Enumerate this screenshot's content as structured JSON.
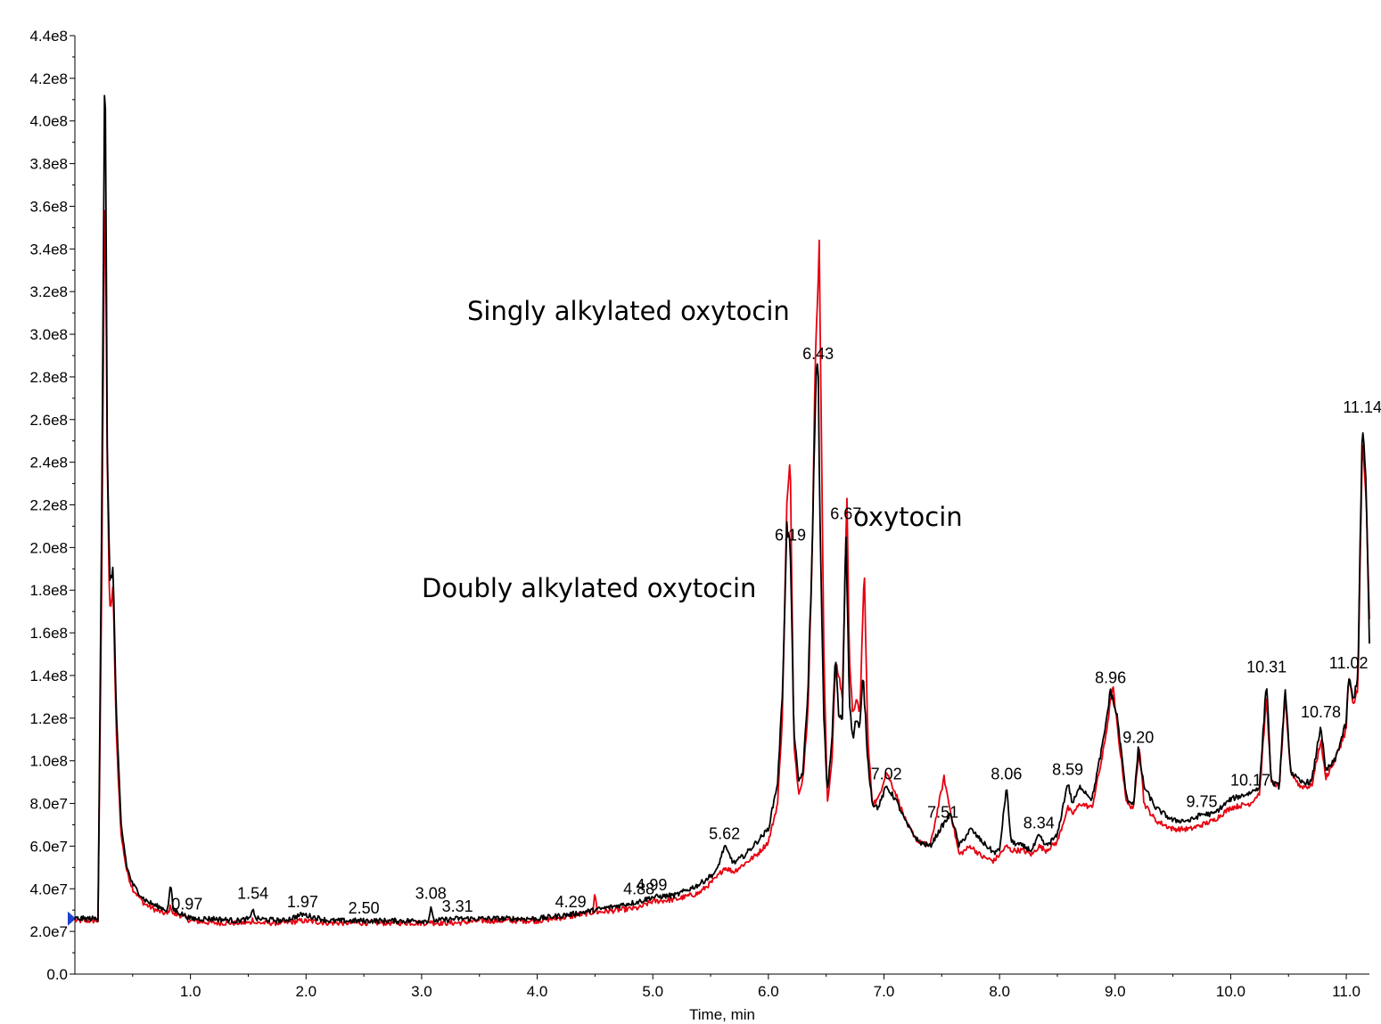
{
  "chart_data": {
    "type": "line",
    "title": "",
    "xlabel": "Time, min",
    "ylabel": "",
    "xlim": [
      0,
      11.2
    ],
    "ylim": [
      0,
      440000000
    ],
    "grid": false,
    "x_ticks": [
      1.0,
      2.0,
      3.0,
      4.0,
      5.0,
      6.0,
      7.0,
      8.0,
      9.0,
      10.0,
      11.0
    ],
    "x_tick_labels": [
      "1.0",
      "2.0",
      "3.0",
      "4.0",
      "5.0",
      "6.0",
      "7.0",
      "8.0",
      "9.0",
      "10.0",
      "11.0"
    ],
    "y_ticks": [
      0,
      20000000,
      40000000,
      60000000,
      80000000,
      100000000,
      120000000,
      140000000,
      160000000,
      180000000,
      200000000,
      220000000,
      240000000,
      260000000,
      280000000,
      300000000,
      320000000,
      340000000,
      360000000,
      380000000,
      400000000,
      420000000,
      440000000
    ],
    "y_tick_labels": [
      "0.0",
      "2.0e7",
      "4.0e7",
      "6.0e7",
      "8.0e7",
      "1.0e8",
      "1.2e8",
      "1.4e8",
      "1.6e8",
      "1.8e8",
      "2.0e8",
      "2.2e8",
      "2.4e8",
      "2.6e8",
      "2.8e8",
      "3.0e8",
      "3.2e8",
      "3.4e8",
      "3.6e8",
      "3.8e8",
      "4.0e8",
      "4.2e8",
      "4.4e8"
    ],
    "series": [
      {
        "color": "#000000",
        "x": [
          0.0,
          0.1,
          0.2,
          0.23,
          0.26,
          0.28,
          0.3,
          0.33,
          0.36,
          0.4,
          0.45,
          0.5,
          0.6,
          0.7,
          0.8,
          0.83,
          0.85,
          0.9,
          1.0,
          1.2,
          1.4,
          1.52,
          1.54,
          1.56,
          1.8,
          1.97,
          2.2,
          2.5,
          2.8,
          3.06,
          3.08,
          3.1,
          3.31,
          3.5,
          4.0,
          4.29,
          4.5,
          4.88,
          4.99,
          5.2,
          5.4,
          5.55,
          5.62,
          5.7,
          5.8,
          5.9,
          6.0,
          6.08,
          6.12,
          6.16,
          6.19,
          6.22,
          6.26,
          6.3,
          6.34,
          6.38,
          6.41,
          6.43,
          6.45,
          6.48,
          6.51,
          6.55,
          6.58,
          6.61,
          6.64,
          6.67,
          6.7,
          6.73,
          6.76,
          6.79,
          6.82,
          6.86,
          6.9,
          6.95,
          7.02,
          7.1,
          7.2,
          7.3,
          7.4,
          7.51,
          7.58,
          7.65,
          7.75,
          7.85,
          7.95,
          8.0,
          8.06,
          8.1,
          8.2,
          8.28,
          8.34,
          8.4,
          8.5,
          8.59,
          8.63,
          8.7,
          8.8,
          8.9,
          8.96,
          9.02,
          9.1,
          9.16,
          9.2,
          9.25,
          9.35,
          9.5,
          9.65,
          9.75,
          9.85,
          10.0,
          10.17,
          10.25,
          10.31,
          10.35,
          10.42,
          10.47,
          10.52,
          10.6,
          10.7,
          10.78,
          10.82,
          10.9,
          11.0,
          11.02,
          11.06,
          11.1,
          11.14,
          11.17,
          11.2
        ],
        "values": [
          26000000,
          26000000,
          26000000,
          200000000,
          440000000,
          250000000,
          185000000,
          190000000,
          120000000,
          70000000,
          50000000,
          42000000,
          35000000,
          32000000,
          30000000,
          42000000,
          30000000,
          29000000,
          26000000,
          26000000,
          25000000,
          26000000,
          32000000,
          26000000,
          25000000,
          28000000,
          25000000,
          25000000,
          25000000,
          25000000,
          32000000,
          25000000,
          26000000,
          26000000,
          26000000,
          28000000,
          30000000,
          34000000,
          36000000,
          37000000,
          42000000,
          48000000,
          60000000,
          52000000,
          56000000,
          62000000,
          68000000,
          90000000,
          130000000,
          210000000,
          200000000,
          115000000,
          90000000,
          95000000,
          130000000,
          200000000,
          280000000,
          285000000,
          200000000,
          120000000,
          85000000,
          110000000,
          150000000,
          120000000,
          120000000,
          210000000,
          130000000,
          110000000,
          120000000,
          115000000,
          140000000,
          100000000,
          80000000,
          78000000,
          88000000,
          82000000,
          70000000,
          62000000,
          60000000,
          70000000,
          75000000,
          60000000,
          68000000,
          62000000,
          57000000,
          58000000,
          88000000,
          62000000,
          60000000,
          58000000,
          65000000,
          60000000,
          65000000,
          90000000,
          80000000,
          88000000,
          82000000,
          110000000,
          133000000,
          120000000,
          82000000,
          80000000,
          105000000,
          88000000,
          78000000,
          72000000,
          72000000,
          75000000,
          75000000,
          82000000,
          85000000,
          88000000,
          138000000,
          90000000,
          88000000,
          133000000,
          95000000,
          90000000,
          90000000,
          117000000,
          95000000,
          100000000,
          118000000,
          140000000,
          128000000,
          140000000,
          260000000,
          230000000,
          155000000
        ]
      },
      {
        "color": "#e8000f",
        "x": [
          0.0,
          0.1,
          0.2,
          0.23,
          0.26,
          0.28,
          0.3,
          0.33,
          0.36,
          0.4,
          0.45,
          0.5,
          0.6,
          0.7,
          0.8,
          0.83,
          0.85,
          0.9,
          1.0,
          1.2,
          1.4,
          1.52,
          1.54,
          1.56,
          1.8,
          1.97,
          2.2,
          2.5,
          2.8,
          3.06,
          3.08,
          3.1,
          3.31,
          3.5,
          4.0,
          4.29,
          4.48,
          4.5,
          4.52,
          4.88,
          4.99,
          5.2,
          5.4,
          5.55,
          5.62,
          5.7,
          5.8,
          5.9,
          6.0,
          6.08,
          6.12,
          6.16,
          6.19,
          6.22,
          6.26,
          6.3,
          6.34,
          6.38,
          6.41,
          6.44,
          6.46,
          6.48,
          6.51,
          6.55,
          6.58,
          6.61,
          6.64,
          6.68,
          6.7,
          6.73,
          6.76,
          6.79,
          6.83,
          6.86,
          6.9,
          6.95,
          7.02,
          7.1,
          7.2,
          7.3,
          7.4,
          7.52,
          7.58,
          7.65,
          7.75,
          7.85,
          7.95,
          8.0,
          8.06,
          8.1,
          8.2,
          8.28,
          8.34,
          8.4,
          8.5,
          8.59,
          8.63,
          8.7,
          8.8,
          8.9,
          8.98,
          9.02,
          9.1,
          9.16,
          9.21,
          9.25,
          9.35,
          9.5,
          9.65,
          9.75,
          9.85,
          10.0,
          10.17,
          10.25,
          10.31,
          10.35,
          10.42,
          10.47,
          10.52,
          10.6,
          10.7,
          10.78,
          10.82,
          10.9,
          11.0,
          11.02,
          11.06,
          11.1,
          11.14,
          11.17,
          11.2
        ],
        "values": [
          25000000,
          25000000,
          25000000,
          170000000,
          390000000,
          240000000,
          170000000,
          180000000,
          110000000,
          65000000,
          48000000,
          40000000,
          33000000,
          30000000,
          28000000,
          32000000,
          28000000,
          28000000,
          25000000,
          24000000,
          24000000,
          24000000,
          26000000,
          24000000,
          24000000,
          25000000,
          24000000,
          24000000,
          24000000,
          24000000,
          25000000,
          24000000,
          24000000,
          25000000,
          25000000,
          27000000,
          29000000,
          38000000,
          29000000,
          31000000,
          34000000,
          35000000,
          38000000,
          45000000,
          50000000,
          48000000,
          52000000,
          56000000,
          62000000,
          80000000,
          120000000,
          220000000,
          240000000,
          110000000,
          85000000,
          92000000,
          120000000,
          200000000,
          300000000,
          340000000,
          250000000,
          150000000,
          80000000,
          100000000,
          145000000,
          140000000,
          130000000,
          225000000,
          150000000,
          120000000,
          130000000,
          120000000,
          190000000,
          110000000,
          80000000,
          82000000,
          95000000,
          85000000,
          70000000,
          62000000,
          60000000,
          92000000,
          75000000,
          56000000,
          60000000,
          55000000,
          53000000,
          56000000,
          60000000,
          58000000,
          58000000,
          56000000,
          60000000,
          58000000,
          62000000,
          78000000,
          75000000,
          80000000,
          78000000,
          105000000,
          135000000,
          115000000,
          80000000,
          78000000,
          108000000,
          80000000,
          72000000,
          68000000,
          68000000,
          70000000,
          72000000,
          78000000,
          80000000,
          85000000,
          130000000,
          90000000,
          88000000,
          128000000,
          95000000,
          88000000,
          88000000,
          110000000,
          92000000,
          100000000,
          115000000,
          140000000,
          125000000,
          135000000,
          250000000,
          225000000,
          165000000
        ]
      }
    ],
    "peak_labels": [
      {
        "text": "0.97",
        "x": 0.97
      },
      {
        "text": "1.54",
        "x": 1.54
      },
      {
        "text": "1.97",
        "x": 1.97
      },
      {
        "text": "2.50",
        "x": 2.5
      },
      {
        "text": "3.08",
        "x": 3.08
      },
      {
        "text": "3.31",
        "x": 3.31
      },
      {
        "text": "4.29",
        "x": 4.29
      },
      {
        "text": "4.88",
        "x": 4.88
      },
      {
        "text": "4.99",
        "x": 4.99
      },
      {
        "text": "5.62",
        "x": 5.62
      },
      {
        "text": "6.19",
        "x": 6.19
      },
      {
        "text": "6.43",
        "x": 6.43
      },
      {
        "text": "6.67",
        "x": 6.67
      },
      {
        "text": "7.02",
        "x": 7.02
      },
      {
        "text": "7.51",
        "x": 7.51
      },
      {
        "text": "8.06",
        "x": 8.06
      },
      {
        "text": "8.34",
        "x": 8.34
      },
      {
        "text": "8.59",
        "x": 8.59
      },
      {
        "text": "8.96",
        "x": 8.96
      },
      {
        "text": "9.20",
        "x": 9.2
      },
      {
        "text": "9.75",
        "x": 9.75
      },
      {
        "text": "10.17",
        "x": 10.17
      },
      {
        "text": "10.31",
        "x": 10.31
      },
      {
        "text": "10.78",
        "x": 10.78
      },
      {
        "text": "11.02",
        "x": 11.02
      },
      {
        "text": "11.14",
        "x": 11.14
      }
    ],
    "annotations": [
      {
        "text": "Singly alkylated oxytocin"
      },
      {
        "text": "oxytocin"
      },
      {
        "text": "Doubly alkylated oxytocin"
      }
    ]
  }
}
